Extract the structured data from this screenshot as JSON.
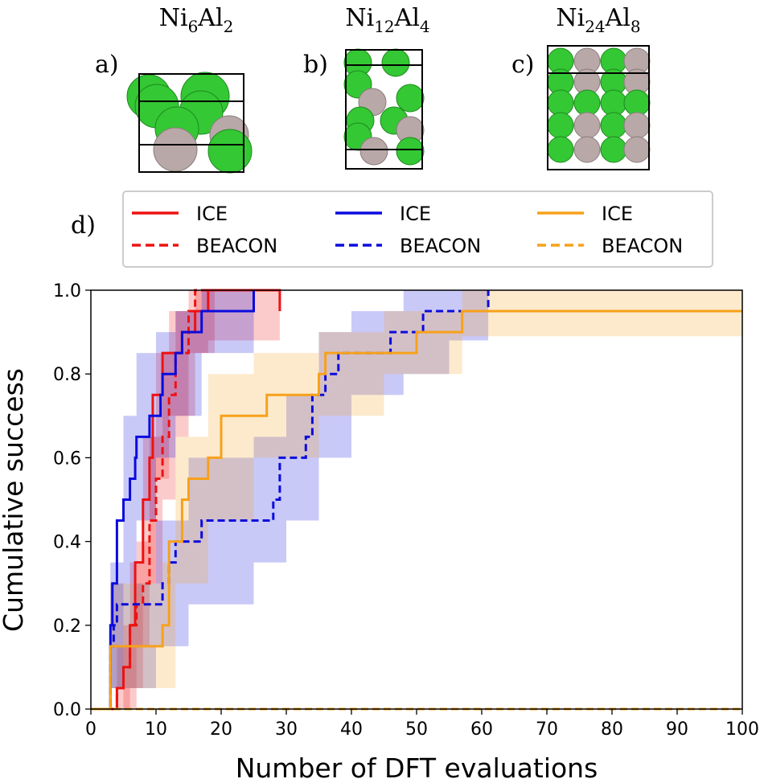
{
  "panels": [
    {
      "label": "a)",
      "title_base1": "Ni",
      "title_sub1": "6",
      "title_base2": "Al",
      "title_sub2": "2"
    },
    {
      "label": "b)",
      "title_base1": "Ni",
      "title_sub1": "12",
      "title_base2": "Al",
      "title_sub2": "4"
    },
    {
      "label": "c)",
      "title_base1": "Ni",
      "title_sub1": "24",
      "title_base2": "Al",
      "title_sub2": "8"
    }
  ],
  "chart_label": "d)",
  "colors": {
    "red": "#ee1111",
    "blue": "#0b0bdd",
    "orange": "#f7a11a",
    "ni": "#34c834",
    "al": "#b9a8a8"
  },
  "chart_data": {
    "type": "line",
    "title": "",
    "xlabel": "Number of DFT evaluations",
    "ylabel": "Cumulative success",
    "xlim": [
      0,
      100
    ],
    "ylim": [
      0,
      1.0
    ],
    "xticks": [
      "0",
      "10",
      "20",
      "30",
      "40",
      "50",
      "60",
      "70",
      "80",
      "90",
      "100"
    ],
    "yticks": [
      "0.0",
      "0.2",
      "0.4",
      "0.6",
      "0.8",
      "1.0"
    ],
    "legend": {
      "placement": "above",
      "entries": [
        {
          "label": "ICE",
          "color": "red",
          "style": "solid"
        },
        {
          "label": "BEACON",
          "color": "red",
          "style": "dashed"
        },
        {
          "label": "ICE",
          "color": "blue",
          "style": "solid"
        },
        {
          "label": "BEACON",
          "color": "blue",
          "style": "dashed"
        },
        {
          "label": "ICE",
          "color": "orange",
          "style": "solid"
        },
        {
          "label": "BEACON",
          "color": "orange",
          "style": "dashed"
        }
      ]
    },
    "series": [
      {
        "name": "Ni6Al2 ICE",
        "color": "red",
        "style": "solid",
        "steps": [
          [
            0,
            0
          ],
          [
            4,
            0
          ],
          [
            4,
            0.05
          ],
          [
            5,
            0.1
          ],
          [
            6,
            0.2
          ],
          [
            6.8,
            0.35
          ],
          [
            8,
            0.5
          ],
          [
            9,
            0.6
          ],
          [
            9.5,
            0.75
          ],
          [
            11,
            0.85
          ],
          [
            14,
            0.9
          ],
          [
            16,
            0.95
          ],
          [
            18,
            1.0
          ],
          [
            29,
            1.0
          ],
          [
            29,
            0.95
          ],
          [
            29,
            0.95
          ]
        ],
        "band": [
          [
            0,
            0,
            0
          ],
          [
            4,
            0,
            0.15
          ],
          [
            6,
            0.05,
            0.35
          ],
          [
            8,
            0.3,
            0.65
          ],
          [
            10,
            0.55,
            0.85
          ],
          [
            12,
            0.7,
            0.95
          ],
          [
            16,
            0.85,
            1.0
          ],
          [
            18,
            0.88,
            1.0
          ],
          [
            29,
            0.88,
            1.0
          ]
        ]
      },
      {
        "name": "Ni6Al2 BEACON",
        "color": "red",
        "style": "dashed",
        "steps": [
          [
            0,
            0
          ],
          [
            4,
            0
          ],
          [
            4,
            0.05
          ],
          [
            5,
            0.1
          ],
          [
            6,
            0.2
          ],
          [
            7,
            0.25
          ],
          [
            8,
            0.3
          ],
          [
            9,
            0.45
          ],
          [
            10,
            0.55
          ],
          [
            11,
            0.65
          ],
          [
            12,
            0.75
          ],
          [
            13,
            0.85
          ],
          [
            15,
            0.95
          ],
          [
            16,
            1.0
          ],
          [
            19,
            1.0
          ]
        ],
        "band": [
          [
            0,
            0,
            0
          ],
          [
            5,
            0,
            0.2
          ],
          [
            7,
            0.15,
            0.4
          ],
          [
            9,
            0.3,
            0.65
          ],
          [
            11,
            0.5,
            0.85
          ],
          [
            13,
            0.65,
            0.95
          ],
          [
            15,
            0.85,
            1.0
          ],
          [
            19,
            0.9,
            1.0
          ]
        ]
      },
      {
        "name": "Ni12Al4 ICE",
        "color": "blue",
        "style": "solid",
        "steps": [
          [
            0,
            0
          ],
          [
            3,
            0
          ],
          [
            3,
            0.2
          ],
          [
            3.3,
            0.3
          ],
          [
            4,
            0.45
          ],
          [
            5,
            0.5
          ],
          [
            6,
            0.55
          ],
          [
            6.8,
            0.6
          ],
          [
            7,
            0.65
          ],
          [
            9,
            0.7
          ],
          [
            10.7,
            0.75
          ],
          [
            11,
            0.8
          ],
          [
            13,
            0.85
          ],
          [
            14,
            0.9
          ],
          [
            15,
            0.9
          ],
          [
            16,
            0.9
          ],
          [
            17,
            0.95
          ],
          [
            25,
            1.0
          ],
          [
            25,
            1.0
          ]
        ],
        "band": [
          [
            0,
            0,
            0
          ],
          [
            3,
            0.05,
            0.35
          ],
          [
            5,
            0.3,
            0.7
          ],
          [
            7,
            0.45,
            0.85
          ],
          [
            10,
            0.6,
            0.9
          ],
          [
            13,
            0.7,
            0.95
          ],
          [
            17,
            0.85,
            1.0
          ],
          [
            25,
            0.88,
            1.0
          ]
        ]
      },
      {
        "name": "Ni12Al4 BEACON",
        "color": "blue",
        "style": "dashed",
        "steps": [
          [
            0,
            0
          ],
          [
            3,
            0
          ],
          [
            3,
            0.15
          ],
          [
            3.5,
            0.2
          ],
          [
            4,
            0.25
          ],
          [
            11,
            0.3
          ],
          [
            12,
            0.35
          ],
          [
            13,
            0.4
          ],
          [
            17,
            0.45
          ],
          [
            28,
            0.5
          ],
          [
            29,
            0.6
          ],
          [
            33,
            0.65
          ],
          [
            34,
            0.75
          ],
          [
            36,
            0.8
          ],
          [
            38,
            0.85
          ],
          [
            46,
            0.9
          ],
          [
            51,
            0.95
          ],
          [
            61,
            1.0
          ],
          [
            61,
            1.0
          ]
        ],
        "band": [
          [
            0,
            0,
            0
          ],
          [
            3,
            0.05,
            0.3
          ],
          [
            10,
            0.15,
            0.45
          ],
          [
            15,
            0.25,
            0.6
          ],
          [
            25,
            0.35,
            0.65
          ],
          [
            30,
            0.45,
            0.75
          ],
          [
            35,
            0.6,
            0.9
          ],
          [
            40,
            0.75,
            0.95
          ],
          [
            48,
            0.8,
            1.0
          ],
          [
            55,
            0.88,
            1.0
          ],
          [
            61,
            0.9,
            1.0
          ]
        ]
      },
      {
        "name": "Ni24Al8 ICE",
        "color": "orange",
        "style": "solid",
        "steps": [
          [
            0,
            0
          ],
          [
            3,
            0
          ],
          [
            3,
            0.15
          ],
          [
            11,
            0.2
          ],
          [
            12,
            0.4
          ],
          [
            14,
            0.5
          ],
          [
            15,
            0.55
          ],
          [
            18,
            0.6
          ],
          [
            20,
            0.7
          ],
          [
            27,
            0.75
          ],
          [
            35,
            0.8
          ],
          [
            36,
            0.85
          ],
          [
            50,
            0.9
          ],
          [
            57,
            0.95
          ],
          [
            100,
            0.95
          ]
        ],
        "band": [
          [
            0,
            0,
            0
          ],
          [
            3,
            0.05,
            0.3
          ],
          [
            11,
            0.05,
            0.35
          ],
          [
            13,
            0.3,
            0.65
          ],
          [
            18,
            0.45,
            0.8
          ],
          [
            25,
            0.6,
            0.85
          ],
          [
            35,
            0.7,
            0.9
          ],
          [
            45,
            0.8,
            0.95
          ],
          [
            57,
            0.89,
            1.0
          ],
          [
            100,
            0.89,
            1.0
          ]
        ]
      },
      {
        "name": "Ni24Al8 BEACON",
        "color": "orange",
        "style": "dashed",
        "steps": [
          [
            0,
            0
          ],
          [
            100,
            0
          ]
        ],
        "band": []
      }
    ]
  }
}
